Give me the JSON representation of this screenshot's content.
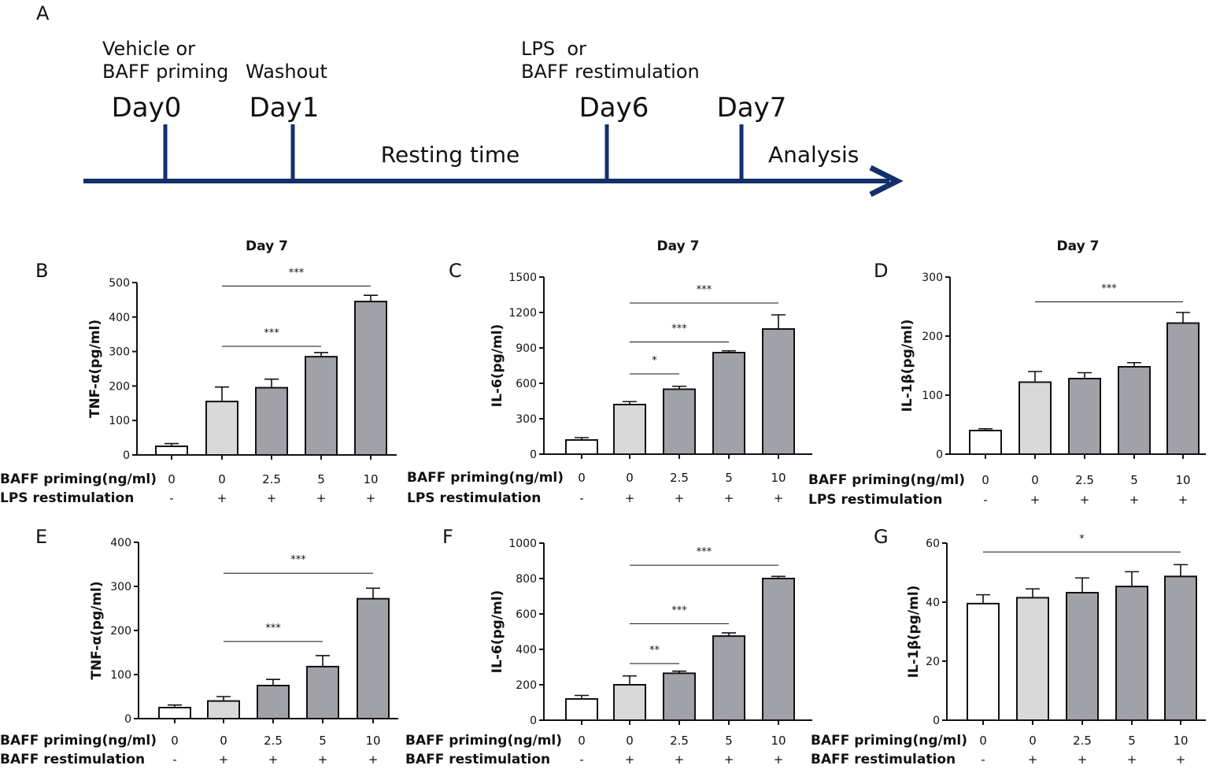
{
  "figure_label": "A",
  "timeline": {
    "days": [
      {
        "day": "Day0",
        "note_lines": [
          "Vehicle or",
          "BAFF priming"
        ]
      },
      {
        "day": "Day1",
        "note_lines": [
          "Washout"
        ]
      },
      {
        "day": "Day6",
        "note_lines": [
          "LPS  or",
          "BAFF restimulation"
        ]
      },
      {
        "day": "Day7",
        "note_lines": []
      }
    ],
    "resting_label": "Resting time",
    "analysis_label": "Analysis",
    "color": "#14306b"
  },
  "colors": {
    "white_bar": "#ffffff",
    "control_bar": "#d9d9d9",
    "treated_bar": "#a1a1a8",
    "stroke": "#111111"
  },
  "chart_data": [
    {
      "id": "B",
      "type": "bar",
      "title": "Day 7",
      "ylabel": "TNF-α(pg/ml)",
      "ylim": [
        0,
        500
      ],
      "yticks": [
        0,
        100,
        200,
        300,
        400,
        500
      ],
      "categories": [
        "0",
        "0",
        "2.5",
        "5",
        "10"
      ],
      "values": [
        25,
        155,
        195,
        285,
        445
      ],
      "errors": [
        8,
        42,
        25,
        12,
        18
      ],
      "bar_fill": [
        "white",
        "control",
        "treated",
        "treated",
        "treated"
      ],
      "rows": [
        {
          "label": "BAFF priming(ng/ml)",
          "values": [
            "0",
            "0",
            "2.5",
            "5",
            "10"
          ]
        },
        {
          "label": "LPS  restimulation",
          "values": [
            "-",
            "+",
            "+",
            "+",
            "+"
          ]
        }
      ],
      "significance": [
        {
          "from": 1,
          "to": 4,
          "y": 490,
          "label": "***"
        },
        {
          "from": 1,
          "to": 3,
          "y": 315,
          "label": "***"
        }
      ]
    },
    {
      "id": "C",
      "type": "bar",
      "title": "Day 7",
      "ylabel": "IL-6(pg/ml)",
      "ylim": [
        0,
        1500
      ],
      "yticks": [
        0,
        300,
        600,
        900,
        1200,
        1500
      ],
      "categories": [
        "0",
        "0",
        "2.5",
        "5",
        "10"
      ],
      "values": [
        120,
        420,
        550,
        860,
        1060
      ],
      "errors": [
        20,
        25,
        25,
        15,
        120
      ],
      "bar_fill": [
        "white",
        "control",
        "treated",
        "treated",
        "treated"
      ],
      "rows": [
        {
          "label": "BAFF priming(ng/ml)",
          "values": [
            "0",
            "0",
            "2.5",
            "5",
            "10"
          ]
        },
        {
          "label": "LPS  restimulation",
          "values": [
            "-",
            "+",
            "+",
            "+",
            "+"
          ]
        }
      ],
      "significance": [
        {
          "from": 1,
          "to": 4,
          "y": 1280,
          "label": "***"
        },
        {
          "from": 1,
          "to": 3,
          "y": 950,
          "label": "***"
        },
        {
          "from": 1,
          "to": 2,
          "y": 680,
          "label": "*"
        }
      ]
    },
    {
      "id": "D",
      "type": "bar",
      "title": "Day 7",
      "ylabel": "IL-1β(pg/ml)",
      "ylim": [
        0,
        300
      ],
      "yticks": [
        0,
        100,
        200,
        300
      ],
      "categories": [
        "0",
        "0",
        "2.5",
        "5",
        "10"
      ],
      "values": [
        40,
        122,
        128,
        148,
        222
      ],
      "errors": [
        3,
        18,
        10,
        7,
        18
      ],
      "bar_fill": [
        "white",
        "control",
        "treated",
        "treated",
        "treated"
      ],
      "rows": [
        {
          "label": "BAFF priming(ng/ml)",
          "values": [
            "0",
            "0",
            "2.5",
            "5",
            "10"
          ]
        },
        {
          "label": "LPS  restimulation",
          "values": [
            "-",
            "+",
            "+",
            "+",
            "+"
          ]
        }
      ],
      "significance": [
        {
          "from": 1,
          "to": 4,
          "y": 258,
          "label": "***"
        }
      ]
    },
    {
      "id": "E",
      "type": "bar",
      "title": "",
      "ylabel": "TNF-α(pg/ml)",
      "ylim": [
        0,
        400
      ],
      "yticks": [
        0,
        100,
        200,
        300,
        400
      ],
      "categories": [
        "0",
        "0",
        "2.5",
        "5",
        "10"
      ],
      "values": [
        25,
        40,
        75,
        118,
        272
      ],
      "errors": [
        6,
        10,
        14,
        25,
        24
      ],
      "bar_fill": [
        "white",
        "control",
        "treated",
        "treated",
        "treated"
      ],
      "rows": [
        {
          "label": "BAFF priming(ng/ml)",
          "values": [
            "0",
            "0",
            "2.5",
            "5",
            "10"
          ]
        },
        {
          "label": "BAFF restimulation",
          "values": [
            "-",
            "+",
            "+",
            "+",
            "+"
          ]
        }
      ],
      "significance": [
        {
          "from": 1,
          "to": 4,
          "y": 330,
          "label": "***"
        },
        {
          "from": 1,
          "to": 3,
          "y": 175,
          "label": "***"
        }
      ]
    },
    {
      "id": "F",
      "type": "bar",
      "title": "",
      "ylabel": "IL-6(pg/ml)",
      "ylim": [
        0,
        1000
      ],
      "yticks": [
        0,
        200,
        400,
        600,
        800,
        1000
      ],
      "categories": [
        "0",
        "0",
        "2.5",
        "5",
        "10"
      ],
      "values": [
        120,
        200,
        265,
        475,
        800
      ],
      "errors": [
        20,
        50,
        12,
        18,
        12
      ],
      "bar_fill": [
        "white",
        "control",
        "treated",
        "treated",
        "treated"
      ],
      "rows": [
        {
          "label": "BAFF priming(ng/ml)",
          "values": [
            "0",
            "0",
            "2.5",
            "5",
            "10"
          ]
        },
        {
          "label": "BAFF restimulation",
          "values": [
            "-",
            "+",
            "+",
            "+",
            "+"
          ]
        }
      ],
      "significance": [
        {
          "from": 1,
          "to": 4,
          "y": 875,
          "label": "***"
        },
        {
          "from": 1,
          "to": 3,
          "y": 545,
          "label": "***"
        },
        {
          "from": 1,
          "to": 2,
          "y": 320,
          "label": "**"
        }
      ]
    },
    {
      "id": "G",
      "type": "bar",
      "title": "",
      "ylabel": "IL-1β(pg/ml)",
      "ylim": [
        0,
        60
      ],
      "yticks": [
        0,
        20,
        40,
        60
      ],
      "categories": [
        "0",
        "0",
        "2.5",
        "5",
        "10"
      ],
      "values": [
        39.5,
        41.5,
        43.2,
        45.3,
        48.7
      ],
      "errors": [
        3,
        3,
        5,
        5,
        4
      ],
      "bar_fill": [
        "white",
        "control",
        "treated",
        "treated",
        "treated"
      ],
      "rows": [
        {
          "label": "BAFF priming(ng/ml)",
          "values": [
            "0",
            "0",
            "2.5",
            "5",
            "10"
          ]
        },
        {
          "label": "BAFF restimulation",
          "values": [
            "-",
            "+",
            "+",
            "+",
            "+"
          ]
        }
      ],
      "significance": [
        {
          "from": 0,
          "to": 4,
          "y": 57,
          "label": "*"
        }
      ]
    }
  ]
}
